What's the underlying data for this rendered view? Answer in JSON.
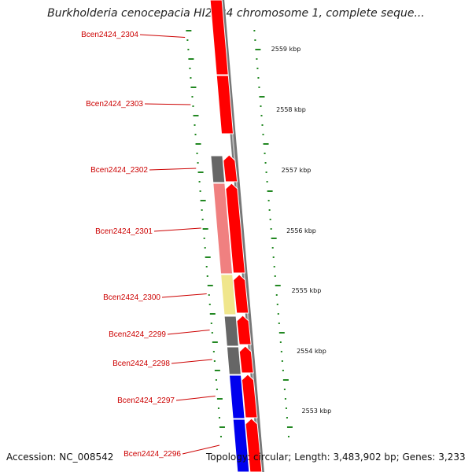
{
  "title": "Burkholderia cenocepacia HI2424 chromosome 1, complete seque...",
  "accession": "Accession: NC_008542",
  "topology": "Topology: circular; Length: 3,483,902 bp; Genes: 3,233",
  "colors": {
    "gene_label": "#cc0000",
    "cds_red": "#ff0000",
    "cds_gray": "#666666",
    "cds_pink": "#f08080",
    "cds_yellow": "#f0e68c",
    "cds_blue": "#0000ee",
    "backbone": "#777777",
    "gc_tick": "#228822"
  },
  "kbp_labels": [
    "2559 kbp",
    "2558 kbp",
    "2557 kbp",
    "2556 kbp",
    "2555 kbp",
    "2554 kbp",
    "2553 kbp"
  ],
  "genes": [
    {
      "name": "Bcen2424_2304",
      "color": "cds_red"
    },
    {
      "name": "Bcen2424_2303",
      "color": "cds_red"
    },
    {
      "name": "Bcen2424_2302",
      "color": "cds_red"
    },
    {
      "name": "Bcen2424_2301",
      "color": "cds_red"
    },
    {
      "name": "Bcen2424_2300",
      "color": "cds_red"
    },
    {
      "name": "Bcen2424_2299",
      "color": "cds_red"
    },
    {
      "name": "Bcen2424_2298",
      "color": "cds_red"
    },
    {
      "name": "Bcen2424_2297",
      "color": "cds_red"
    },
    {
      "name": "Bcen2424_2296",
      "color": "cds_red"
    }
  ],
  "feature_blocks": [
    {
      "color": "cds_gray"
    },
    {
      "color": "cds_pink"
    },
    {
      "color": "cds_yellow"
    },
    {
      "color": "cds_gray"
    },
    {
      "color": "cds_gray"
    },
    {
      "color": "cds_blue"
    },
    {
      "color": "cds_blue"
    }
  ]
}
